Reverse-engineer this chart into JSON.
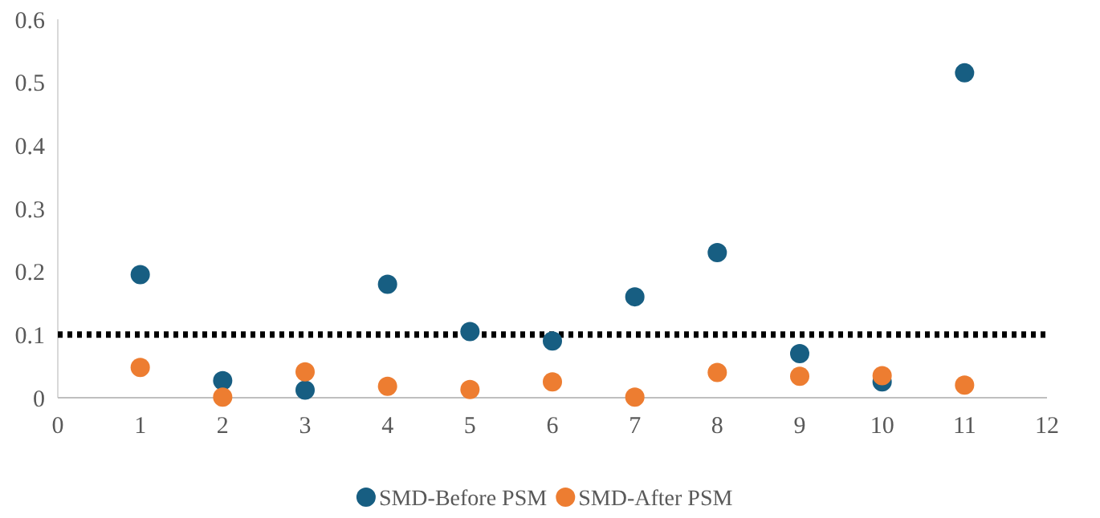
{
  "chart_data": {
    "type": "scatter",
    "x": [
      1,
      2,
      3,
      4,
      5,
      6,
      7,
      8,
      9,
      10,
      11
    ],
    "series": [
      {
        "name": "SMD-Before PSM",
        "color": "#175e82",
        "values": [
          0.195,
          0.027,
          0.012,
          0.18,
          0.105,
          0.09,
          0.16,
          0.23,
          0.07,
          0.025,
          0.515
        ]
      },
      {
        "name": "SMD-After PSM",
        "color": "#ed7d31",
        "values": [
          0.048,
          0.001,
          0.041,
          0.018,
          0.013,
          0.025,
          0.001,
          0.04,
          0.034,
          0.035,
          0.02
        ]
      }
    ],
    "xlim": [
      0,
      12
    ],
    "xticks": [
      0,
      1,
      2,
      3,
      4,
      5,
      6,
      7,
      8,
      9,
      10,
      11,
      12
    ],
    "ylim": [
      0,
      0.6
    ],
    "yticks": [
      0,
      0.1,
      0.2,
      0.3,
      0.4,
      0.5,
      0.6
    ],
    "ref_lines": [
      {
        "axis": "y",
        "value": 0.1,
        "color": "#000000",
        "line_style": "dotted"
      }
    ],
    "marker": "circle",
    "grid": false,
    "legend": "bottom"
  }
}
